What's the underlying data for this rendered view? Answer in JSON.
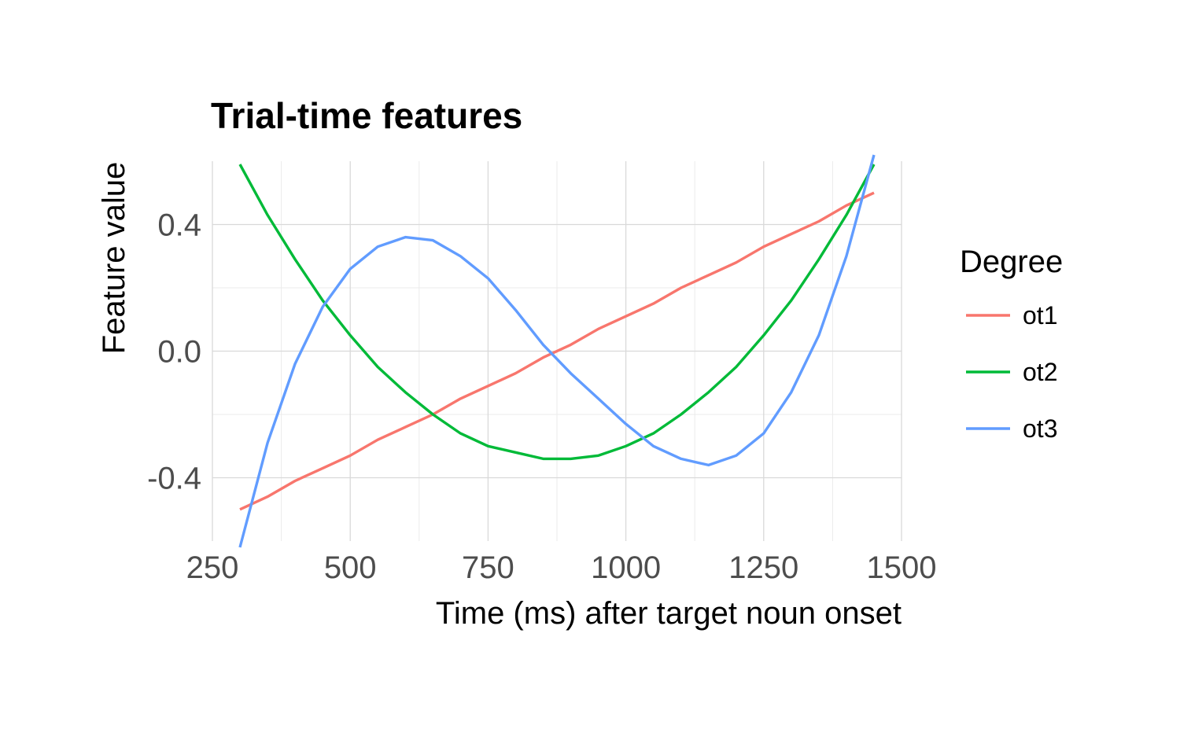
{
  "chart_data": {
    "type": "line",
    "title": "Trial-time features",
    "xlabel": "Time (ms) after target noun onset",
    "ylabel": "Feature value",
    "xlim": [
      250,
      1500
    ],
    "ylim": [
      -0.6,
      0.6
    ],
    "x_ticks": [
      250,
      500,
      750,
      1000,
      1250,
      1500
    ],
    "x_tick_labels": [
      "250",
      "500",
      "750",
      "1000",
      "1250",
      "1500"
    ],
    "y_ticks": [
      -0.4,
      0.0,
      0.4
    ],
    "y_tick_labels": [
      "-0.4",
      "0.0",
      "0.4"
    ],
    "grid": true,
    "legend": {
      "title": "Degree",
      "position": "right"
    },
    "x": [
      300,
      350,
      400,
      450,
      500,
      550,
      600,
      650,
      700,
      750,
      800,
      850,
      900,
      950,
      1000,
      1050,
      1100,
      1150,
      1200,
      1250,
      1300,
      1350,
      1400,
      1450
    ],
    "series": [
      {
        "name": "ot1",
        "color": "#F8766D",
        "values": [
          -0.5,
          -0.46,
          -0.41,
          -0.37,
          -0.33,
          -0.28,
          -0.24,
          -0.2,
          -0.15,
          -0.11,
          -0.07,
          -0.02,
          0.02,
          0.07,
          0.11,
          0.15,
          0.2,
          0.24,
          0.28,
          0.33,
          0.37,
          0.41,
          0.46,
          0.5
        ]
      },
      {
        "name": "ot2",
        "color": "#00BA38",
        "values": [
          0.59,
          0.43,
          0.29,
          0.16,
          0.05,
          -0.05,
          -0.13,
          -0.2,
          -0.26,
          -0.3,
          -0.32,
          -0.34,
          -0.34,
          -0.33,
          -0.3,
          -0.26,
          -0.2,
          -0.13,
          -0.05,
          0.05,
          0.16,
          0.29,
          0.43,
          0.59
        ]
      },
      {
        "name": "ot3",
        "color": "#619CFF",
        "values": [
          -0.62,
          -0.29,
          -0.04,
          0.14,
          0.26,
          0.33,
          0.36,
          0.35,
          0.3,
          0.23,
          0.13,
          0.02,
          -0.07,
          -0.15,
          -0.23,
          -0.3,
          -0.34,
          -0.36,
          -0.33,
          -0.26,
          -0.13,
          0.05,
          0.3,
          0.62
        ]
      }
    ]
  }
}
